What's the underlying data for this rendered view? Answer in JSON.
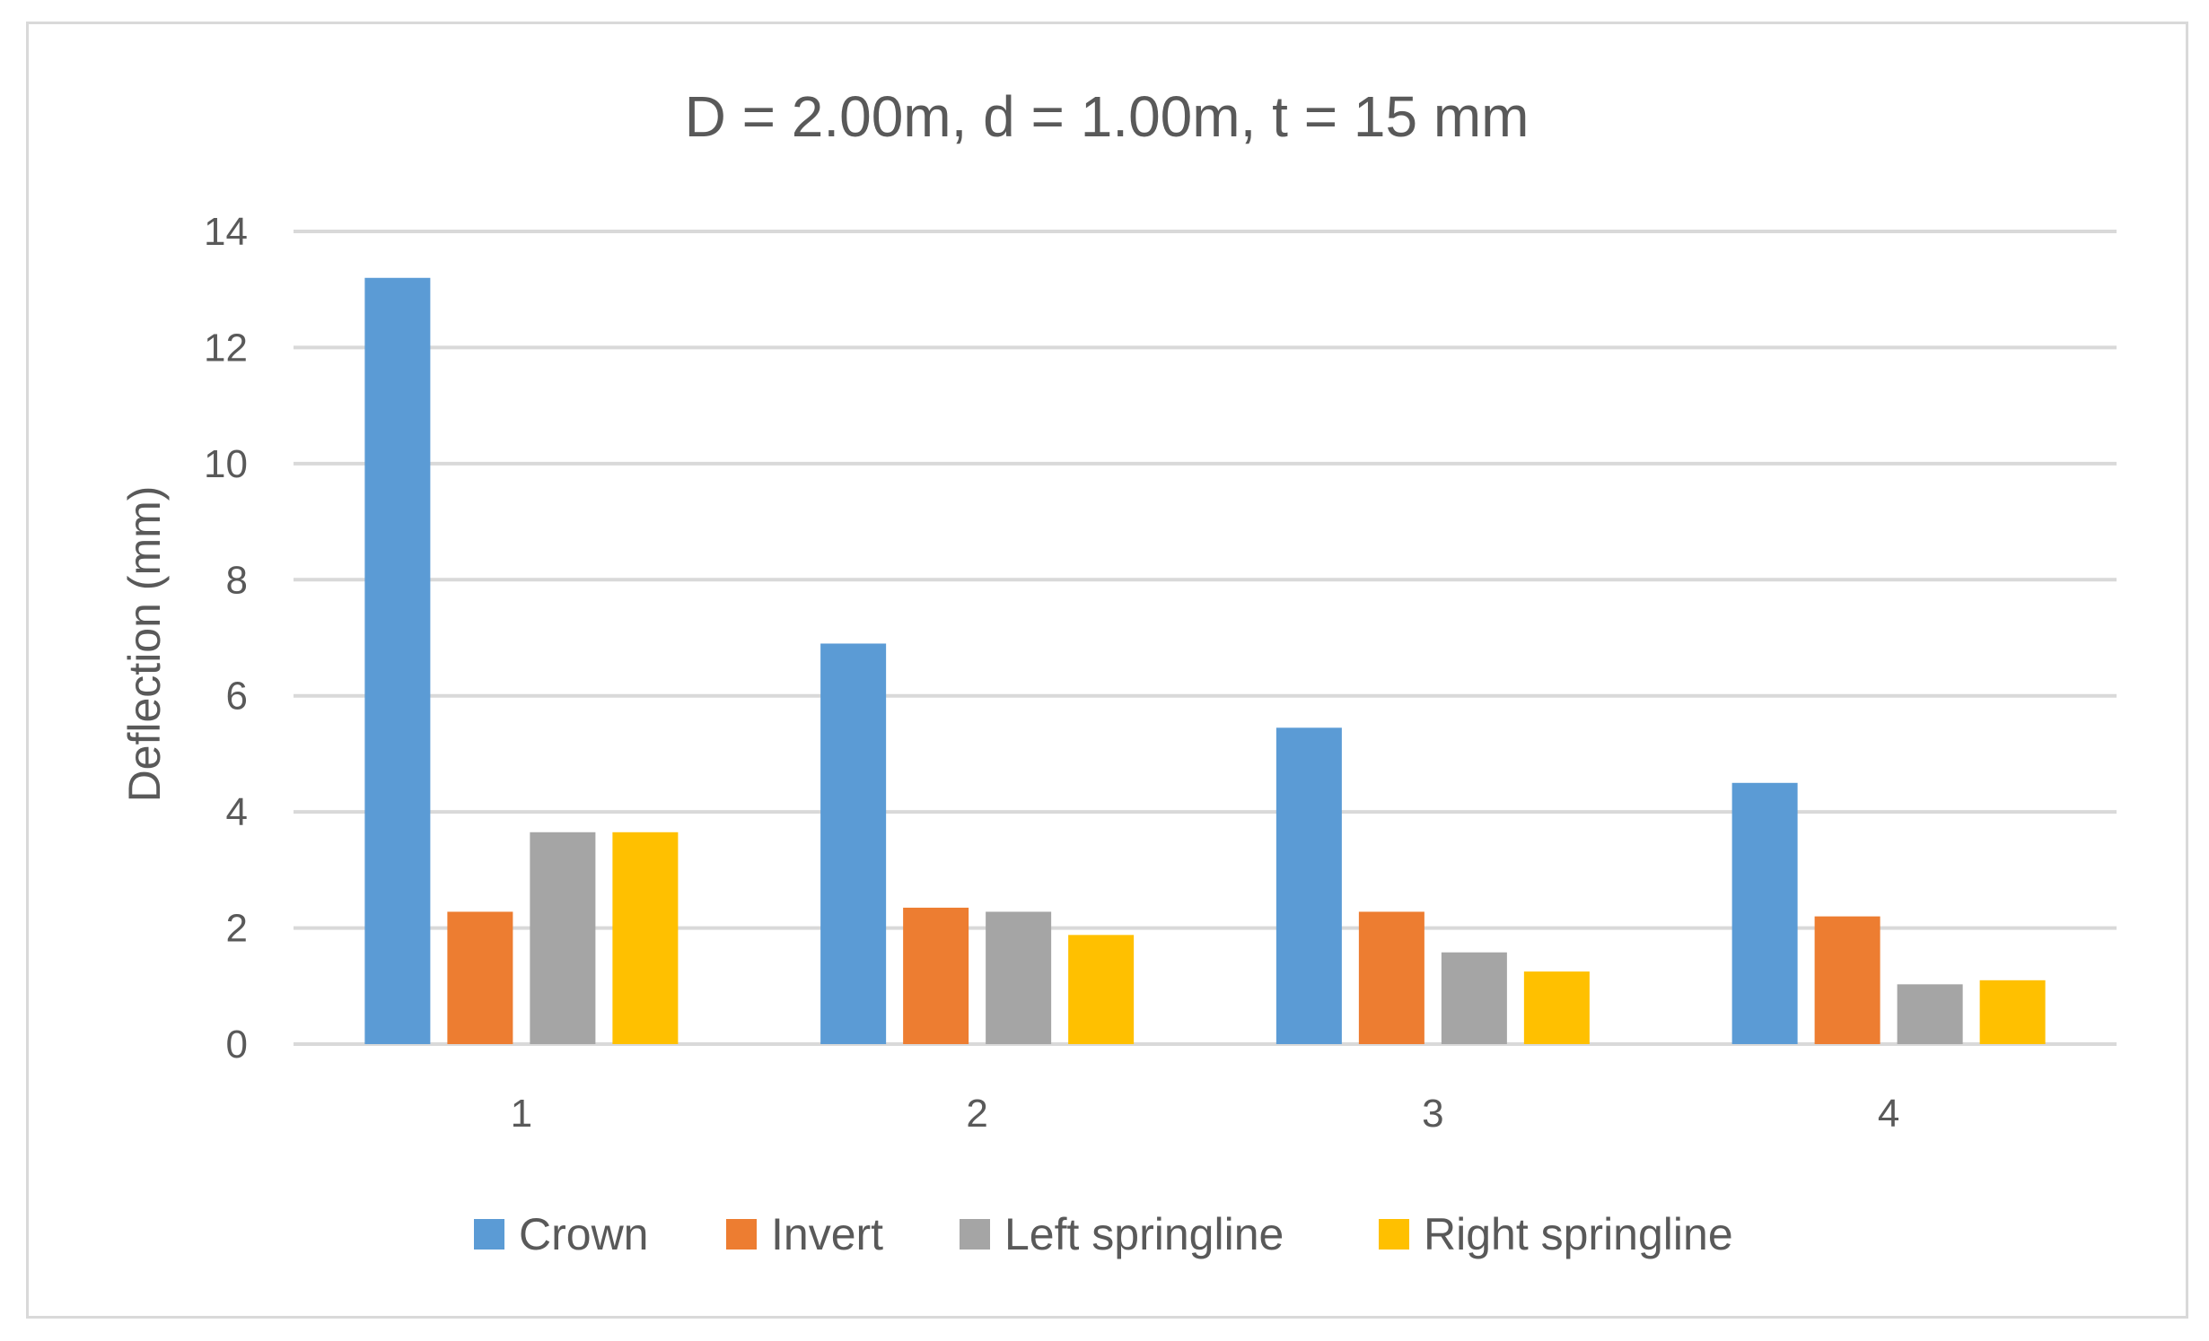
{
  "chart_data": {
    "type": "bar",
    "title": "D = 2.00m, d = 1.00m, t = 15 mm",
    "xlabel": "",
    "ylabel": "Deflection (mm)",
    "categories": [
      "1",
      "2",
      "3",
      "4"
    ],
    "ylim": [
      0,
      14
    ],
    "yticks": [
      0,
      2,
      4,
      6,
      8,
      10,
      12,
      14
    ],
    "grid": true,
    "legend_position": "bottom",
    "series": [
      {
        "name": "Crown",
        "color": "#5b9bd5",
        "values": [
          13.2,
          6.9,
          5.45,
          4.5
        ]
      },
      {
        "name": "Invert",
        "color": "#ed7d31",
        "values": [
          2.28,
          2.35,
          2.28,
          2.2
        ]
      },
      {
        "name": "Left springline",
        "color": "#a5a5a5",
        "values": [
          3.65,
          2.28,
          1.58,
          1.03
        ]
      },
      {
        "name": "Right springline",
        "color": "#ffc000",
        "values": [
          3.65,
          1.88,
          1.25,
          1.1
        ]
      }
    ]
  }
}
